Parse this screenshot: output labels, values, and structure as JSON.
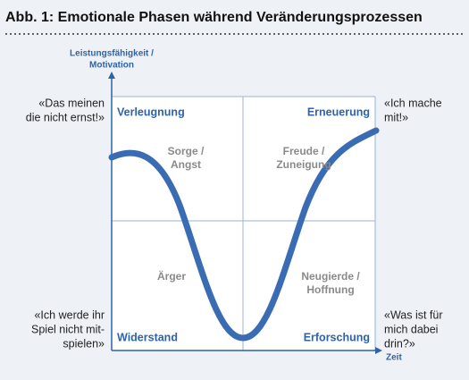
{
  "header": {
    "title": "Abb. 1: Emotionale Phasen während Veränderungsprozessen"
  },
  "axes": {
    "y_label": [
      "Leistungsfähigkeit /",
      "Motivation"
    ],
    "x_label": "Zeit"
  },
  "quadrants": {
    "top_left": "Verleugnung",
    "top_right": "Erneuerung",
    "bottom_left": "Widerstand",
    "bottom_right": "Erforschung"
  },
  "emotions": {
    "top_left": [
      "Sorge /",
      "Angst"
    ],
    "top_right": [
      "Freude /",
      "Zuneigung"
    ],
    "bottom_left": [
      "Ärger"
    ],
    "bottom_right": [
      "Neugierde /",
      "Hoffnung"
    ]
  },
  "quotes": {
    "top_left": [
      "«Das meinen",
      "die nicht ernst!»"
    ],
    "top_right": [
      "«Ich mache",
      "mit!»"
    ],
    "bottom_left": [
      "«Ich werde ihr",
      "Spiel nicht mit-",
      "spielen»"
    ],
    "bottom_right": [
      "«Was ist für",
      "mich dabei",
      "drin?»"
    ]
  }
}
